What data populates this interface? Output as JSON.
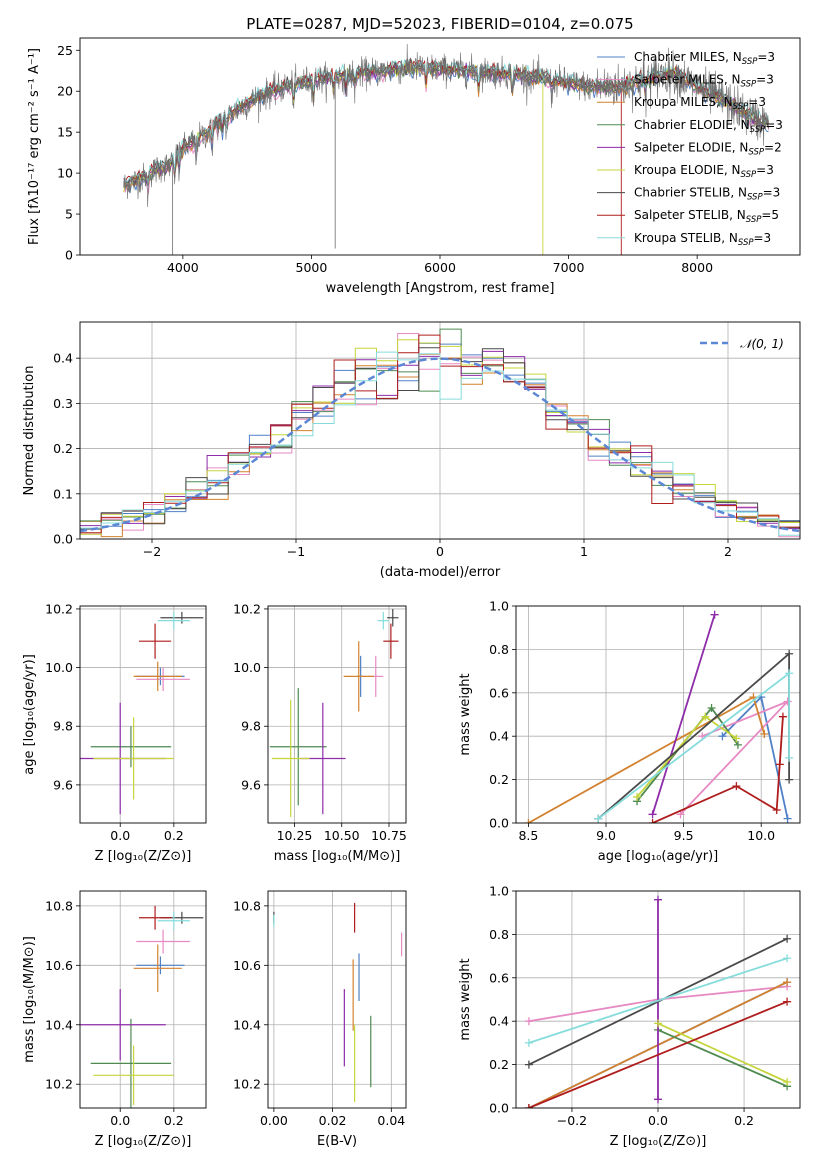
{
  "figure_title": "PLATE=0287, MJD=52023, FIBERID=0104, z=0.075",
  "colors": {
    "Chabrier MILES": "#4f81c7",
    "Salpeter MILES": "#e78ac3",
    "Kroupa MILES": "#d2822f",
    "Chabrier ELODIE": "#4e8a50",
    "Salpeter ELODIE": "#8e2ca9",
    "Kroupa ELODIE": "#c6d53c",
    "Chabrier STELIB": "#4a4a4a",
    "Salpeter STELIB": "#b01d1d",
    "Kroupa STELIB": "#86dcdc"
  },
  "chart_data": [
    {
      "id": "spectrum",
      "type": "line",
      "title": "PLATE=0287, MJD=52023, FIBERID=0104, z=0.075",
      "xlabel": "wavelength [Angstrom, rest frame]",
      "ylabel": "Flux [fλ10⁻¹⁷ erg cm⁻² s⁻¹ A⁻¹]",
      "xlim": [
        3200,
        8800
      ],
      "ylim": [
        0,
        26.5
      ],
      "xticks": [
        4000,
        5000,
        6000,
        7000,
        8000
      ],
      "yticks": [
        0,
        5,
        10,
        15,
        20,
        25
      ],
      "grid": false,
      "legend_placement": "top-right",
      "legend": [
        "Chabrier MILES, N_SSP=3",
        "Salpeter MILES, N_SSP=3",
        "Kroupa MILES, N_SSP=3",
        "Chabrier ELODIE, N_SSP=3",
        "Salpeter ELODIE, N_SSP=2",
        "Kroupa ELODIE, N_SSP=3",
        "Chabrier STELIB, N_SSP=3",
        "Salpeter STELIB, N_SSP=5",
        "Kroupa STELIB, N_SSP=3"
      ],
      "continuum": {
        "x": [
          3540,
          3700,
          3800,
          3900,
          4000,
          4100,
          4200,
          4300,
          4400,
          4500,
          4600,
          4700,
          4800,
          4900,
          5000,
          5200,
          5400,
          5600,
          5800,
          6000,
          6200,
          6400,
          6600,
          6800,
          7000,
          7200,
          7400,
          7600,
          7800,
          8000,
          8200,
          8400,
          8550
        ],
        "y": [
          8.5,
          9.5,
          10.5,
          11.0,
          13.0,
          14.0,
          15.0,
          16.5,
          17.5,
          18.5,
          19.3,
          20.0,
          20.5,
          21.0,
          21.3,
          21.8,
          22.2,
          22.6,
          22.9,
          22.7,
          22.5,
          22.3,
          22.0,
          21.6,
          21.0,
          20.5,
          20.6,
          21.5,
          22.3,
          20.5,
          19.0,
          17.0,
          16.0
        ]
      },
      "observed_data_outliers": [
        [
          5185,
          0.8
        ],
        [
          6800,
          0
        ],
        [
          7410,
          0
        ],
        [
          3920,
          0
        ]
      ]
    },
    {
      "id": "residuals",
      "type": "step",
      "xlabel": "(data-model)/error",
      "ylabel": "Normed distribution",
      "xlim": [
        -2.5,
        2.5
      ],
      "ylim": [
        0,
        0.48
      ],
      "xticks": [
        -2,
        -1,
        0,
        1,
        2
      ],
      "yticks": [
        0.0,
        0.1,
        0.2,
        0.3,
        0.4
      ],
      "grid": true,
      "legend_placement": "top-right",
      "legend": [
        "𝒩(0, 1)"
      ],
      "reference_curve": {
        "name": "𝒩(0, 1)",
        "mean": 0,
        "sigma": 1
      }
    },
    {
      "id": "age_vs_Z",
      "type": "errorbar",
      "xlabel": "Z [log₁₀(Z/Z⊙)]",
      "ylabel": "age  [log₁₀(age/yr)]",
      "xlim": [
        -0.15,
        0.32
      ],
      "ylim": [
        9.47,
        10.21
      ],
      "xticks": [
        0.0,
        0.2
      ],
      "yticks": [
        9.6,
        9.8,
        10.0,
        10.2
      ],
      "grid": true,
      "points": [
        {
          "model": "Chabrier MILES",
          "x": 0.15,
          "y": 9.97,
          "xerr": 0.09,
          "yerr": 0.03
        },
        {
          "model": "Salpeter MILES",
          "x": 0.16,
          "y": 9.96,
          "xerr": 0.1,
          "yerr": 0.04
        },
        {
          "model": "Kroupa MILES",
          "x": 0.14,
          "y": 9.97,
          "xerr": 0.09,
          "yerr": 0.05
        },
        {
          "model": "Chabrier ELODIE",
          "x": 0.04,
          "y": 9.73,
          "xerr": 0.15,
          "yerr": 0.07
        },
        {
          "model": "Salpeter ELODIE",
          "x": 0.0,
          "y": 9.69,
          "xerr": 0.17,
          "yerr": 0.19
        },
        {
          "model": "Kroupa ELODIE",
          "x": 0.05,
          "y": 9.69,
          "xerr": 0.15,
          "yerr": 0.14
        },
        {
          "model": "Chabrier STELIB",
          "x": 0.23,
          "y": 10.17,
          "xerr": 0.08,
          "yerr": 0.02
        },
        {
          "model": "Salpeter STELIB",
          "x": 0.13,
          "y": 10.09,
          "xerr": 0.06,
          "yerr": 0.06
        },
        {
          "model": "Kroupa STELIB",
          "x": 0.2,
          "y": 10.16,
          "xerr": 0.06,
          "yerr": 0.03
        }
      ]
    },
    {
      "id": "age_vs_mass",
      "type": "errorbar",
      "xlabel": "mass [log₁₀(M/M⊙)]",
      "ylabel": "",
      "xlim": [
        10.11,
        10.84
      ],
      "ylim": [
        9.47,
        10.21
      ],
      "xticks": [
        10.25,
        10.5,
        10.75
      ],
      "yticks": [
        9.6,
        9.8,
        10.0,
        10.2
      ],
      "grid": true,
      "points": [
        {
          "model": "Chabrier MILES",
          "x": 10.6,
          "y": 9.97,
          "xerr": 0.02,
          "yerr": 0.07
        },
        {
          "model": "Salpeter MILES",
          "x": 10.68,
          "y": 9.97,
          "xerr": 0.04,
          "yerr": 0.07
        },
        {
          "model": "Kroupa MILES",
          "x": 10.59,
          "y": 9.97,
          "xerr": 0.08,
          "yerr": 0.12
        },
        {
          "model": "Chabrier ELODIE",
          "x": 10.27,
          "y": 9.73,
          "xerr": 0.15,
          "yerr": 0.2
        },
        {
          "model": "Salpeter ELODIE",
          "x": 10.4,
          "y": 9.69,
          "xerr": 0.12,
          "yerr": 0.19
        },
        {
          "model": "Kroupa ELODIE",
          "x": 10.23,
          "y": 9.69,
          "xerr": 0.1,
          "yerr": 0.2
        },
        {
          "model": "Chabrier STELIB",
          "x": 10.77,
          "y": 10.17,
          "xerr": 0.03,
          "yerr": 0.03
        },
        {
          "model": "Salpeter STELIB",
          "x": 10.76,
          "y": 10.09,
          "xerr": 0.04,
          "yerr": 0.06
        },
        {
          "model": "Kroupa STELIB",
          "x": 10.72,
          "y": 10.16,
          "xerr": 0.03,
          "yerr": 0.03
        }
      ]
    },
    {
      "id": "weight_vs_age",
      "type": "line",
      "xlabel": "age  [log₁₀(age/yr)]",
      "ylabel": "mass weight",
      "xlim": [
        8.42,
        10.25
      ],
      "ylim": [
        0,
        1
      ],
      "xticks": [
        8.5,
        9.0,
        9.5,
        10.0
      ],
      "yticks": [
        0.0,
        0.2,
        0.4,
        0.6,
        0.8,
        1.0
      ],
      "grid": true,
      "series": [
        {
          "model": "Chabrier MILES",
          "x": [
            9.75,
            10.0,
            10.17
          ],
          "y": [
            0.4,
            0.58,
            0.02
          ]
        },
        {
          "model": "Salpeter MILES",
          "x": [
            9.48,
            10.17,
            9.62
          ],
          "y": [
            0.04,
            0.56,
            0.4
          ]
        },
        {
          "model": "Kroupa MILES",
          "x": [
            8.5,
            9.95,
            10.02
          ],
          "y": [
            0.0,
            0.58,
            0.41
          ]
        },
        {
          "model": "Chabrier ELODIE",
          "x": [
            9.2,
            9.68,
            9.85
          ],
          "y": [
            0.1,
            0.53,
            0.36
          ]
        },
        {
          "model": "Salpeter ELODIE",
          "x": [
            9.3,
            9.7
          ],
          "y": [
            0.04,
            0.96
          ]
        },
        {
          "model": "Kroupa ELODIE",
          "x": [
            9.2,
            9.64,
            9.84
          ],
          "y": [
            0.12,
            0.49,
            0.39
          ]
        },
        {
          "model": "Chabrier STELIB",
          "x": [
            8.95,
            10.18,
            10.18
          ],
          "y": [
            0.02,
            0.78,
            0.2
          ]
        },
        {
          "model": "Salpeter STELIB",
          "x": [
            9.3,
            9.84,
            10.1,
            10.14,
            10.12
          ],
          "y": [
            0.0,
            0.17,
            0.06,
            0.49,
            0.27
          ]
        },
        {
          "model": "Kroupa STELIB",
          "x": [
            8.95,
            10.18,
            10.18
          ],
          "y": [
            0.02,
            0.69,
            0.3
          ]
        }
      ]
    },
    {
      "id": "mass_vs_Z",
      "type": "errorbar",
      "xlabel": "Z [log₁₀(Z/Z⊙)]",
      "ylabel": "mass [log₁₀(M/M⊙)]",
      "xlim": [
        -0.15,
        0.32
      ],
      "ylim": [
        10.12,
        10.85
      ],
      "xticks": [
        0.0,
        0.2
      ],
      "yticks": [
        10.2,
        10.4,
        10.6,
        10.8
      ],
      "grid": true,
      "points": [
        {
          "model": "Chabrier MILES",
          "x": 0.15,
          "y": 10.6,
          "xerr": 0.09,
          "yerr": 0.03
        },
        {
          "model": "Salpeter MILES",
          "x": 0.16,
          "y": 10.68,
          "xerr": 0.1,
          "yerr": 0.04
        },
        {
          "model": "Kroupa MILES",
          "x": 0.14,
          "y": 10.59,
          "xerr": 0.09,
          "yerr": 0.08
        },
        {
          "model": "Chabrier ELODIE",
          "x": 0.04,
          "y": 10.27,
          "xerr": 0.15,
          "yerr": 0.15
        },
        {
          "model": "Salpeter ELODIE",
          "x": 0.0,
          "y": 10.4,
          "xerr": 0.17,
          "yerr": 0.12
        },
        {
          "model": "Kroupa ELODIE",
          "x": 0.05,
          "y": 10.23,
          "xerr": 0.15,
          "yerr": 0.1
        },
        {
          "model": "Chabrier STELIB",
          "x": 0.23,
          "y": 10.76,
          "xerr": 0.08,
          "yerr": 0.02
        },
        {
          "model": "Salpeter STELIB",
          "x": 0.13,
          "y": 10.76,
          "xerr": 0.06,
          "yerr": 0.04
        },
        {
          "model": "Kroupa STELIB",
          "x": 0.2,
          "y": 10.75,
          "xerr": 0.06,
          "yerr": 0.03
        }
      ]
    },
    {
      "id": "mass_vs_ebv",
      "type": "errorbar",
      "xlabel": "E(B-V)",
      "ylabel": "",
      "xlim": [
        -0.002,
        0.045
      ],
      "ylim": [
        10.12,
        10.85
      ],
      "xticks": [
        0.0,
        0.02,
        0.04
      ],
      "yticks": [
        10.2,
        10.4,
        10.6,
        10.8
      ],
      "grid": true,
      "points": [
        {
          "model": "Chabrier MILES",
          "x": 0.029,
          "y": 10.56,
          "xerr": 0,
          "yerr": 0.08
        },
        {
          "model": "Salpeter MILES",
          "x": 0.0435,
          "y": 10.67,
          "xerr": 0,
          "yerr": 0.04
        },
        {
          "model": "Kroupa MILES",
          "x": 0.027,
          "y": 10.5,
          "xerr": 0,
          "yerr": 0.12
        },
        {
          "model": "Chabrier ELODIE",
          "x": 0.033,
          "y": 10.31,
          "xerr": 0,
          "yerr": 0.12
        },
        {
          "model": "Salpeter ELODIE",
          "x": 0.024,
          "y": 10.39,
          "xerr": 0,
          "yerr": 0.13
        },
        {
          "model": "Kroupa ELODIE",
          "x": 0.0275,
          "y": 10.27,
          "xerr": 0,
          "yerr": 0.13
        },
        {
          "model": "Chabrier STELIB",
          "x": 0.0,
          "y": 10.76,
          "xerr": 0,
          "yerr": 0.02
        },
        {
          "model": "Salpeter STELIB",
          "x": 0.0275,
          "y": 10.76,
          "xerr": 0,
          "yerr": 0.05
        },
        {
          "model": "Kroupa STELIB",
          "x": 0.0,
          "y": 10.75,
          "xerr": 0,
          "yerr": 0.02
        }
      ]
    },
    {
      "id": "weight_vs_Z",
      "type": "line",
      "xlabel": "Z [log₁₀(Z/Z⊙)]",
      "ylabel": "mass weight",
      "xlim": [
        -0.33,
        0.33
      ],
      "ylim": [
        0,
        1
      ],
      "xticks": [
        -0.2,
        0.0,
        0.2
      ],
      "yticks": [
        0.0,
        0.2,
        0.4,
        0.6,
        0.8,
        1.0
      ],
      "grid": true,
      "series": [
        {
          "model": "Chabrier MILES",
          "x": [
            -0.3,
            0.3
          ],
          "y": [
            0.0,
            0.58
          ]
        },
        {
          "model": "Salpeter MILES",
          "x": [
            -0.3,
            0.0,
            0.3
          ],
          "y": [
            0.4,
            0.5,
            0.56
          ]
        },
        {
          "model": "Kroupa MILES",
          "x": [
            -0.3,
            0.3
          ],
          "y": [
            0.0,
            0.58
          ]
        },
        {
          "model": "Chabrier ELODIE",
          "x": [
            0.0,
            0.3
          ],
          "y": [
            0.36,
            0.1
          ]
        },
        {
          "model": "Salpeter ELODIE",
          "x": [
            0.0,
            0.0
          ],
          "y": [
            0.04,
            0.96
          ]
        },
        {
          "model": "Kroupa ELODIE",
          "x": [
            0.0,
            0.3
          ],
          "y": [
            0.39,
            0.12
          ]
        },
        {
          "model": "Chabrier STELIB",
          "x": [
            -0.3,
            0.3
          ],
          "y": [
            0.2,
            0.78
          ]
        },
        {
          "model": "Salpeter STELIB",
          "x": [
            -0.3,
            0.3
          ],
          "y": [
            0.0,
            0.49
          ]
        },
        {
          "model": "Kroupa STELIB",
          "x": [
            -0.3,
            0.3
          ],
          "y": [
            0.3,
            0.69
          ]
        }
      ]
    }
  ]
}
